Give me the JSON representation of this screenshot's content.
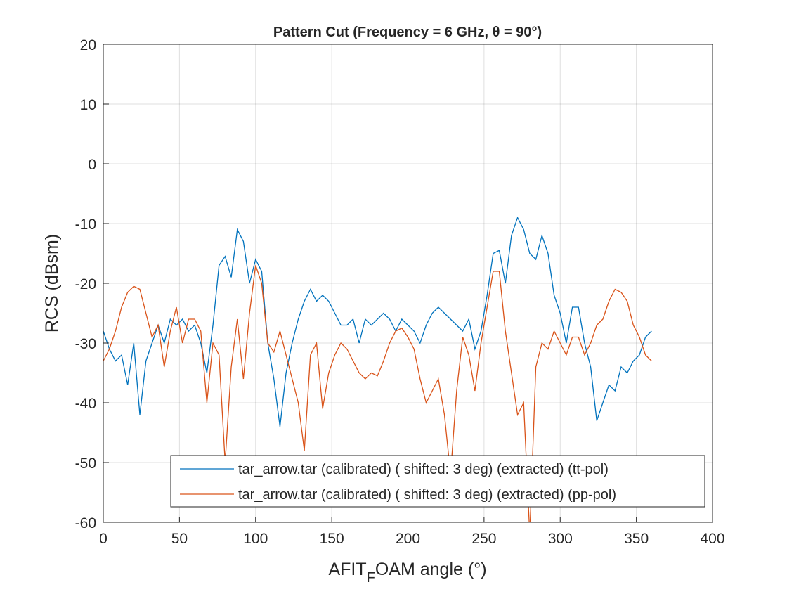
{
  "chart_data": {
    "type": "line",
    "title": "Pattern Cut (Frequency = 6 GHz, θ = 90°)",
    "xlabel_parts": [
      "AFIT",
      "F",
      "OAM angle (°)"
    ],
    "ylabel": "RCS (dBsm)",
    "x": [
      0,
      4,
      8,
      12,
      16,
      20,
      24,
      28,
      32,
      36,
      40,
      44,
      48,
      52,
      56,
      60,
      64,
      68,
      72,
      76,
      80,
      84,
      88,
      92,
      96,
      100,
      104,
      108,
      112,
      116,
      120,
      124,
      128,
      132,
      136,
      140,
      144,
      148,
      152,
      156,
      160,
      164,
      168,
      172,
      176,
      180,
      184,
      188,
      192,
      196,
      200,
      204,
      208,
      212,
      216,
      220,
      224,
      228,
      232,
      236,
      240,
      244,
      248,
      252,
      256,
      260,
      264,
      268,
      272,
      276,
      280,
      284,
      288,
      292,
      296,
      300,
      304,
      308,
      312,
      316,
      320,
      324,
      328,
      332,
      336,
      340,
      344,
      348,
      352,
      356,
      360
    ],
    "series": [
      {
        "name": "tar_arrow.tar (calibrated) ( shifted: 3 deg) (extracted) (tt-pol)",
        "color": "#0072BD",
        "values": [
          -28,
          -31,
          -33,
          -32,
          -37,
          -30,
          -42,
          -33,
          -30,
          -27,
          -30,
          -26,
          -27,
          -26,
          -28,
          -27,
          -30,
          -35,
          -27,
          -17,
          -15.5,
          -19,
          -11,
          -13,
          -20,
          -16,
          -18,
          -30,
          -36,
          -44,
          -35,
          -30,
          -26,
          -23,
          -21,
          -23,
          -22,
          -23,
          -25,
          -27,
          -27,
          -26,
          -30,
          -26,
          -27,
          -26,
          -25,
          -26,
          -28,
          -26,
          -27,
          -28,
          -30,
          -27,
          -25,
          -24,
          -25,
          -26,
          -27,
          -28,
          -26,
          -31,
          -28,
          -22,
          -15,
          -14.5,
          -20,
          -12,
          -9,
          -11,
          -15,
          -16,
          -12,
          -15,
          -22,
          -25,
          -30,
          -24,
          -24,
          -30,
          -34,
          -43,
          -40,
          -37,
          -38,
          -34,
          -35,
          -33,
          -32,
          -29,
          -28
        ]
      },
      {
        "name": "tar_arrow.tar (calibrated) ( shifted: 3 deg) (extracted) (pp-pol)",
        "color": "#D95319",
        "values": [
          -33,
          -31,
          -28,
          -24,
          -21.5,
          -20.5,
          -21,
          -25,
          -29,
          -27,
          -34,
          -28,
          -24,
          -30,
          -26,
          -26,
          -28,
          -40,
          -30,
          -32,
          -50,
          -34,
          -26,
          -36,
          -25,
          -17,
          -20,
          -30,
          -31.5,
          -28,
          -32,
          -36,
          -40,
          -48,
          -32,
          -30,
          -41,
          -35,
          -32,
          -30,
          -31,
          -33,
          -35,
          -36,
          -35,
          -35.5,
          -33,
          -30,
          -28,
          -27.5,
          -29,
          -31,
          -36,
          -40,
          -38,
          -36,
          -42,
          -52,
          -38,
          -29,
          -32,
          -38,
          -30,
          -24,
          -18,
          -18,
          -28,
          -35,
          -42,
          -40,
          -62,
          -34,
          -30,
          -31,
          -28,
          -30,
          -32,
          -29,
          -29,
          -32,
          -30,
          -27,
          -26,
          -23,
          -21,
          -21.5,
          -23,
          -27,
          -29,
          -32,
          -33
        ]
      }
    ],
    "xlim": [
      0,
      400
    ],
    "xticks": [
      0,
      50,
      100,
      150,
      200,
      250,
      300,
      350,
      400
    ],
    "ylim": [
      -60,
      20
    ],
    "yticks": [
      -60,
      -50,
      -40,
      -30,
      -20,
      -10,
      0,
      10,
      20
    ],
    "grid": true,
    "legend_location": "southeast"
  }
}
